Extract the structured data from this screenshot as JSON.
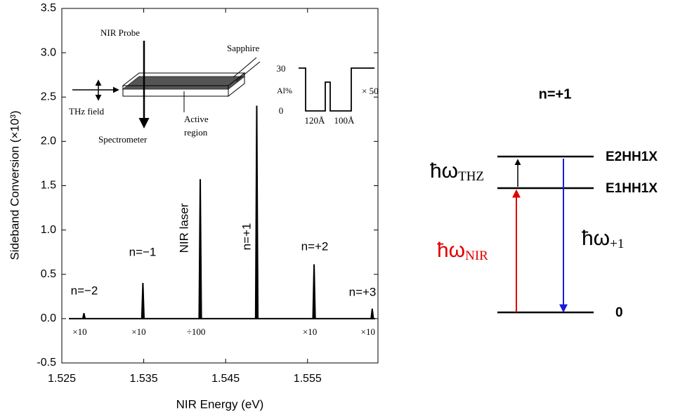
{
  "chart_data": {
    "type": "spike",
    "x_label": "NIR Energy (eV)",
    "y_label": "Sideband Conversion (×10³)",
    "x": [
      1.5277,
      1.5349,
      1.5419,
      1.5488,
      1.5558,
      1.5629
    ],
    "values": [
      0.06,
      0.4,
      1.57,
      2.4,
      0.61,
      0.11
    ],
    "peak_labels": [
      "n=−2",
      "n=−1",
      "NIR laser",
      "n=+1",
      "n=+2",
      "n=+3"
    ],
    "scale_labels": [
      "×10",
      "×10",
      "÷100",
      null,
      "×10",
      "×10"
    ],
    "color": "#000000",
    "xlim": [
      1.525,
      1.5636
    ],
    "ylim": [
      -0.5,
      3.5
    ],
    "xticks": [
      1.525,
      1.535,
      1.545,
      1.555
    ],
    "yticks": [
      3.5,
      {
        "value": 3,
        "label": "3.0"
      },
      2.5,
      {
        "value": 2,
        "label": "2.0"
      },
      1.5,
      {
        "value": 1,
        "label": "1.0"
      },
      0.5,
      {
        "value": 0,
        "label": "0.0"
      },
      -0.5
    ]
  },
  "inset": {
    "nir_probe": "NIR Probe",
    "sapphire": "Sapphire",
    "thz_field": "THz field",
    "spectrometer": "Spectrometer",
    "active_region": [
      "Active",
      "region"
    ],
    "al_max": "30",
    "al_label": "Al%",
    "al_min": "0",
    "well1": "120Å",
    "well2": "100Å",
    "magnification": "× 50"
  },
  "level_diagram": {
    "title": "n=+1",
    "levels": [
      "E2HH1X",
      "E1HH1X",
      "0"
    ],
    "thz": {
      "symbol": "ħω",
      "sub": "THZ"
    },
    "nir": {
      "symbol": "ħω",
      "sub": "NIR"
    },
    "sideband": {
      "symbol": "ħω",
      "sub": "+1"
    }
  }
}
